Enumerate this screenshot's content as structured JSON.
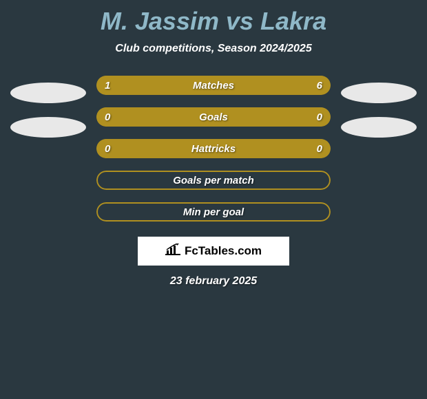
{
  "title": "M. Jassim vs Lakra",
  "subtitle": "Club competitions, Season 2024/2025",
  "colors": {
    "background": "#2a3840",
    "title_color": "#8fb8c8",
    "text_color": "#ffffff",
    "bar_color": "#b09020",
    "avatar_color": "#e8e8e8",
    "logo_bg": "#ffffff"
  },
  "stats": [
    {
      "label": "Matches",
      "left_value": "1",
      "right_value": "6",
      "left_raw": 1,
      "right_raw": 6,
      "left_pct": 17,
      "right_pct": 83,
      "show_values": true
    },
    {
      "label": "Goals",
      "left_value": "0",
      "right_value": "0",
      "left_raw": 0,
      "right_raw": 0,
      "left_pct": 50,
      "right_pct": 50,
      "show_values": true
    },
    {
      "label": "Hattricks",
      "left_value": "0",
      "right_value": "0",
      "left_raw": 0,
      "right_raw": 0,
      "left_pct": 50,
      "right_pct": 50,
      "show_values": true
    },
    {
      "label": "Goals per match",
      "left_value": "",
      "right_value": "",
      "left_raw": 0,
      "right_raw": 0,
      "left_pct": 0,
      "right_pct": 0,
      "show_values": false
    },
    {
      "label": "Min per goal",
      "left_value": "",
      "right_value": "",
      "left_raw": 0,
      "right_raw": 0,
      "left_pct": 0,
      "right_pct": 0,
      "show_values": false
    }
  ],
  "avatars_left_count": 2,
  "avatars_right_count": 2,
  "logo_text": "FcTables.com",
  "date": "23 february 2025"
}
